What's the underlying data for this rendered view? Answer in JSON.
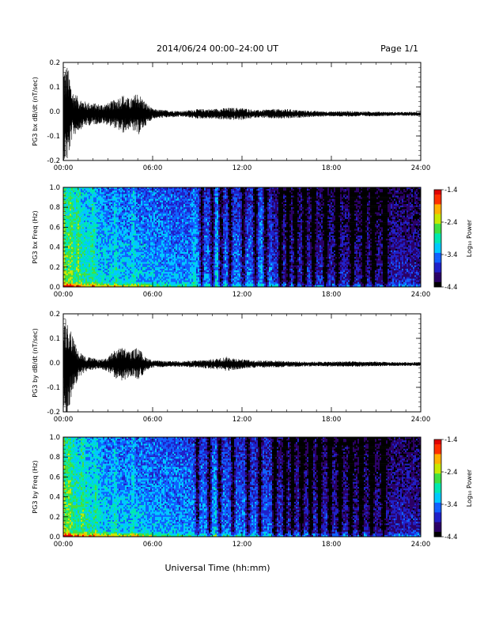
{
  "header": {
    "title": "2014/06/24  00:00–24:00 UT",
    "page": "Page 1/1"
  },
  "x_axis": {
    "title": "Universal Time (hh:mm)",
    "ticks": [
      "00:00",
      "06:00",
      "12:00",
      "18:00",
      "24:00"
    ]
  },
  "colors": {
    "axis": "#000000",
    "trace": "#000000",
    "colormap": [
      "#000000",
      "#2a0066",
      "#2020c8",
      "#1060ff",
      "#00c8ff",
      "#00e8b0",
      "#40e040",
      "#c8e800",
      "#ffb000",
      "#ff3000",
      "#e00000"
    ]
  },
  "chart_data": [
    {
      "type": "line",
      "panel": "bx-waveform",
      "ylabel": "PG3 bx dB/dt (nT/sec)",
      "ylim": [
        -0.2,
        0.2
      ],
      "yticks": [
        "0.2",
        "0.1",
        "0.0",
        "-0.1",
        "-0.2"
      ],
      "xlim_hours": [
        0,
        24
      ],
      "baseline": -0.01,
      "envelope": {
        "hours": [
          0,
          0.3,
          0.6,
          1.0,
          1.5,
          2.0,
          2.5,
          3.0,
          3.5,
          4.0,
          4.5,
          5.0,
          5.5,
          6.0,
          7,
          8,
          9,
          10,
          11,
          12,
          13,
          14,
          15,
          16,
          17,
          18,
          19,
          20,
          21,
          22,
          23,
          24
        ],
        "amplitude": [
          0.2,
          0.2,
          0.1,
          0.07,
          0.05,
          0.045,
          0.04,
          0.045,
          0.06,
          0.08,
          0.06,
          0.09,
          0.05,
          0.02,
          0.015,
          0.012,
          0.02,
          0.02,
          0.025,
          0.025,
          0.015,
          0.02,
          0.02,
          0.015,
          0.012,
          0.01,
          0.012,
          0.01,
          0.01,
          0.008,
          0.008,
          0.008
        ]
      }
    },
    {
      "type": "heatmap",
      "panel": "bx-spectrogram",
      "ylabel": "PG3 bx Freq (Hz)",
      "ylim": [
        0.0,
        1.0
      ],
      "yticks": [
        "1.0",
        "0.8",
        "0.6",
        "0.4",
        "0.2",
        "0.0"
      ],
      "xlim_hours": [
        0,
        24
      ],
      "colorbar_label": "Log₁₀ Power",
      "colorbar_range": [
        -4.4,
        -1.4
      ],
      "colorbar_ticks": [
        "-1.4",
        "-2.4",
        "-3.4",
        "-4.4"
      ],
      "dark_band_hours": [
        9.3,
        10.0,
        10.6,
        11.2,
        12.1,
        12.9,
        13.6,
        14.6,
        15.1,
        15.6,
        16.2,
        16.8,
        17.6,
        18.4,
        19.4,
        20.2,
        20.8,
        21.6
      ],
      "active_band_hours": [
        0.0,
        0.5,
        1.0,
        2.0,
        3.5,
        4.7,
        8.8,
        10.3,
        13.3
      ]
    },
    {
      "type": "line",
      "panel": "by-waveform",
      "ylabel": "PG3 by dB/dt (nT/sec)",
      "ylim": [
        -0.2,
        0.2
      ],
      "yticks": [
        "0.2",
        "0.1",
        "0.0",
        "-0.1",
        "-0.2"
      ],
      "xlim_hours": [
        0,
        24
      ],
      "baseline": -0.005,
      "envelope": {
        "hours": [
          0,
          0.3,
          0.6,
          1.0,
          1.5,
          2.0,
          2.5,
          3.0,
          3.5,
          4.0,
          4.5,
          5.0,
          5.5,
          6.0,
          7,
          8,
          9,
          10,
          11,
          12,
          13,
          14,
          15,
          16,
          17,
          18,
          19,
          20,
          21,
          22,
          23,
          24
        ],
        "amplitude": [
          0.2,
          0.2,
          0.12,
          0.06,
          0.03,
          0.025,
          0.02,
          0.03,
          0.06,
          0.07,
          0.05,
          0.07,
          0.03,
          0.015,
          0.012,
          0.012,
          0.015,
          0.02,
          0.03,
          0.02,
          0.015,
          0.015,
          0.012,
          0.01,
          0.01,
          0.01,
          0.012,
          0.01,
          0.01,
          0.008,
          0.008,
          0.008
        ]
      }
    },
    {
      "type": "heatmap",
      "panel": "by-spectrogram",
      "ylabel": "PG3 by Freq (Hz)",
      "ylim": [
        0.0,
        1.0
      ],
      "yticks": [
        "1.0",
        "0.8",
        "0.6",
        "0.4",
        "0.2",
        "0.0"
      ],
      "xlim_hours": [
        0,
        24
      ],
      "colorbar_label": "Log₁₀ Power",
      "colorbar_range": [
        -4.4,
        -1.4
      ],
      "colorbar_ticks": [
        "-1.4",
        "-2.4",
        "-3.4",
        "-4.4"
      ],
      "dark_band_hours": [
        9.0,
        9.8,
        10.5,
        11.4,
        12.4,
        13.2,
        14.2,
        14.9,
        15.4,
        16.0,
        16.6,
        17.2,
        17.9,
        18.6,
        19.3,
        20.0,
        20.7,
        21.5
      ],
      "active_band_hours": [
        0.0,
        0.4,
        1.3,
        2.2,
        3.5,
        4.7,
        10.2
      ]
    }
  ]
}
